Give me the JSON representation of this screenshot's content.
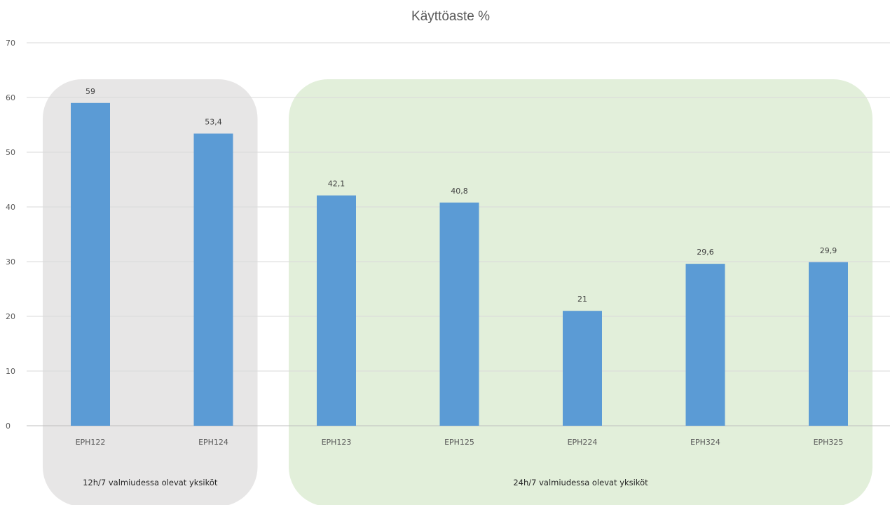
{
  "chart_data": {
    "type": "bar",
    "title": "Käyttöaste %",
    "xlabel": "",
    "ylabel": "",
    "ylim": [
      0,
      70
    ],
    "yticks": [
      "0",
      "10",
      "20",
      "30",
      "40",
      "50",
      "60",
      "70"
    ],
    "grid": true,
    "categories": [
      "EPH122",
      "EPH124",
      "EPH123",
      "EPH125",
      "EPH224",
      "EPH324",
      "EPH325"
    ],
    "values": [
      59,
      53.4,
      42.1,
      40.8,
      21,
      29.6,
      29.9
    ],
    "data_labels": [
      "59",
      "53,4",
      "42,1",
      "40,8",
      "21",
      "29,6",
      "29,9"
    ],
    "bar_color": "#5B9BD5",
    "groups": [
      {
        "label": "12h/7 valmiudessa olevat yksiköt",
        "categories": [
          "EPH122",
          "EPH124"
        ],
        "color": "#E7E6E6"
      },
      {
        "label": "24h/7 valmiudessa olevat yksiköt",
        "categories": [
          "EPH123",
          "EPH125",
          "EPH224",
          "EPH324",
          "EPH325"
        ],
        "color": "#E2EFDA"
      }
    ]
  }
}
